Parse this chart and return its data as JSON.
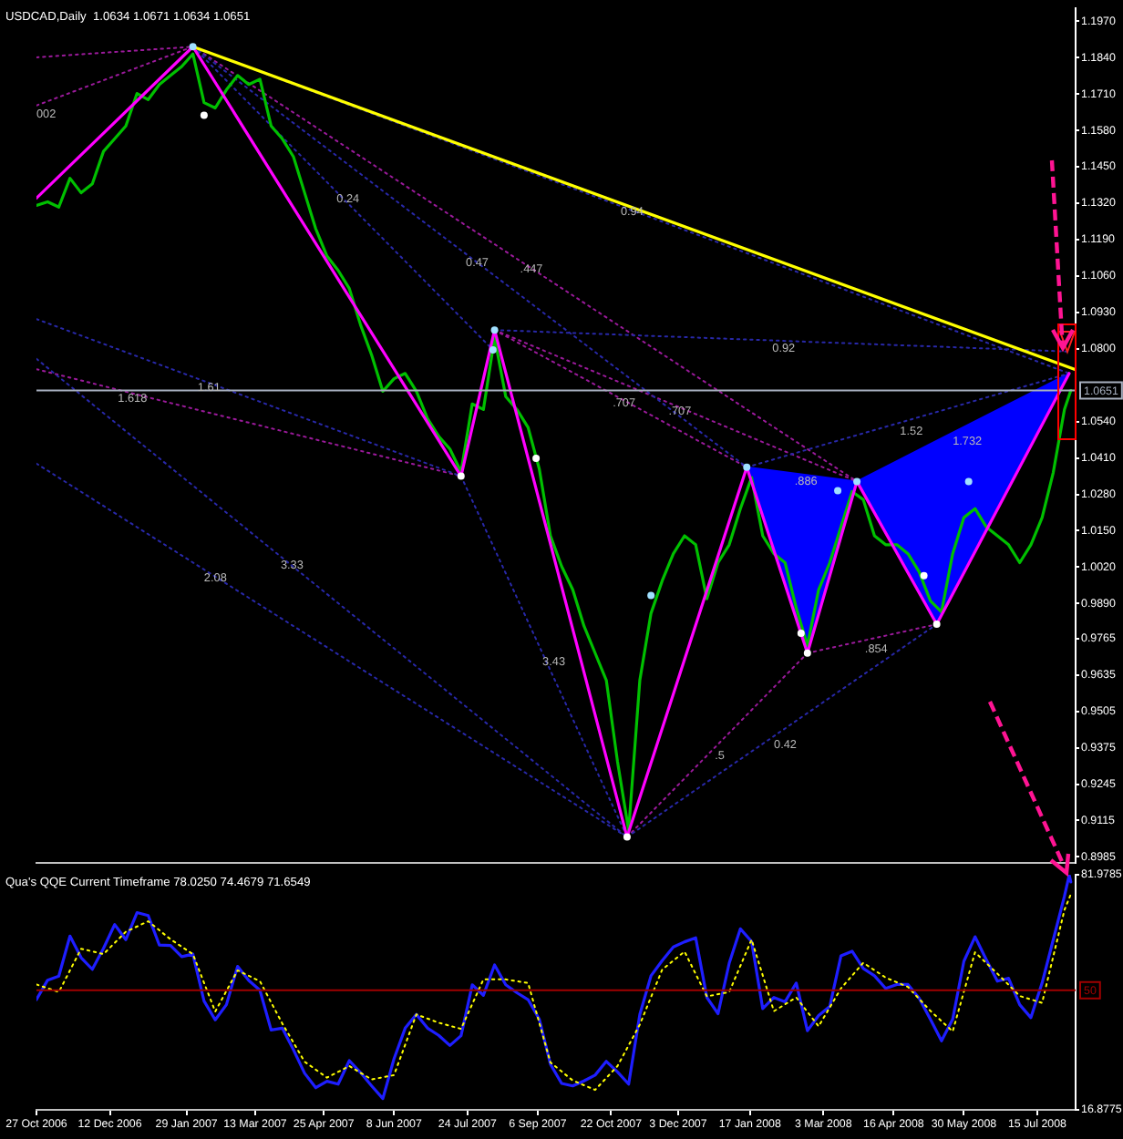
{
  "chart_data": [
    {
      "type": "line",
      "title": "USDCAD,Daily  1.0634 1.0671 1.0634 1.0651",
      "tick_labels": "y",
      "marker": "none",
      "line_style": "solid",
      "xlim": [
        "2006-10-27",
        "2008-08-08"
      ],
      "ylim": [
        0.8965,
        1.2015
      ],
      "yticks": [
        {
          "value": 1.197,
          "label": "1.1970"
        },
        {
          "value": 1.184,
          "label": "1.1840"
        },
        {
          "value": 1.171,
          "label": "1.1710"
        },
        {
          "value": 1.158,
          "label": "1.1580"
        },
        {
          "value": 1.145,
          "label": "1.1450"
        },
        {
          "value": 1.132,
          "label": "1.1320"
        },
        {
          "value": 1.119,
          "label": "1.1190"
        },
        {
          "value": 1.106,
          "label": "1.1060"
        },
        {
          "value": 1.093,
          "label": "1.0930"
        },
        {
          "value": 1.08,
          "label": "1.0800"
        },
        {
          "value": 1.054,
          "label": "1.0540"
        },
        {
          "value": 1.041,
          "label": "1.0410"
        },
        {
          "value": 1.028,
          "label": "1.0280"
        },
        {
          "value": 1.015,
          "label": "1.0150"
        },
        {
          "value": 1.002,
          "label": "1.0020"
        },
        {
          "value": 0.989,
          "label": "0.9890"
        },
        0.9765,
        0.9635,
        0.9505,
        0.9375,
        0.9245,
        0.9115,
        0.8985
      ],
      "x": [
        "2006-10-27",
        "2006-11-03",
        "2006-11-10",
        "2006-11-17",
        "2006-11-24",
        "2006-12-01",
        "2006-12-08",
        "2006-12-15",
        "2006-12-22",
        "2006-12-29",
        "2007-01-05",
        "2007-01-12",
        "2007-01-19",
        "2007-01-26",
        "2007-02-02",
        "2007-02-09",
        "2007-02-16",
        "2007-02-23",
        "2007-03-02",
        "2007-03-09",
        "2007-03-16",
        "2007-03-23",
        "2007-03-30",
        "2007-04-06",
        "2007-04-13",
        "2007-04-20",
        "2007-04-27",
        "2007-05-04",
        "2007-05-11",
        "2007-05-18",
        "2007-05-25",
        "2007-06-01",
        "2007-06-08",
        "2007-06-15",
        "2007-06-22",
        "2007-06-29",
        "2007-07-06",
        "2007-07-13",
        "2007-07-20",
        "2007-07-27",
        "2007-08-03",
        "2007-08-10",
        "2007-08-17",
        "2007-08-24",
        "2007-08-31",
        "2007-09-07",
        "2007-09-14",
        "2007-09-21",
        "2007-09-28",
        "2007-10-05",
        "2007-10-12",
        "2007-10-19",
        "2007-10-26",
        "2007-11-02",
        "2007-11-09",
        "2007-11-16",
        "2007-11-23",
        "2007-11-30",
        "2007-12-07",
        "2007-12-14",
        "2007-12-21",
        "2007-12-28",
        "2008-01-04",
        "2008-01-11",
        "2008-01-18",
        "2008-01-25",
        "2008-02-01",
        "2008-02-08",
        "2008-02-15",
        "2008-02-22",
        "2008-02-29",
        "2008-03-07",
        "2008-03-14",
        "2008-03-21",
        "2008-03-28",
        "2008-04-04",
        "2008-04-11",
        "2008-04-18",
        "2008-04-25",
        "2008-05-02",
        "2008-05-09",
        "2008-05-16",
        "2008-05-23",
        "2008-05-30",
        "2008-06-06",
        "2008-06-13",
        "2008-06-20",
        "2008-06-27",
        "2008-07-04",
        "2008-07-11",
        "2008-07-18",
        "2008-07-25",
        "2008-08-01",
        "2008-08-05"
      ],
      "series": [
        {
          "type": "area",
          "color": "#0000ff",
          "x": [
            "2008-01-15",
            "2008-02-22",
            "2008-03-24",
            "2008-01-15"
          ],
          "values": [
            1.0377,
            0.9713,
            1.0326,
            1.0377
          ]
        },
        {
          "type": "area",
          "color": "#0000ff",
          "x": [
            "2008-03-24",
            "2008-05-13",
            "2008-08-04",
            "2008-03-24"
          ],
          "values": [
            1.0326,
            0.9816,
            1.0712,
            1.0326
          ]
        },
        {
          "type": "line",
          "line_style": "dotted",
          "color": "#9a1a9a",
          "x": [
            "2006-10-27",
            "2007-02-02"
          ],
          "values": [
            1.1841,
            1.1879
          ]
        },
        {
          "type": "line",
          "line_style": "dotted",
          "color": "#9a1a9a",
          "x": [
            "2006-10-27",
            "2007-02-02"
          ],
          "values": [
            1.1669,
            1.1879
          ]
        },
        {
          "type": "line",
          "line_style": "dotted",
          "color": "#9a1a9a",
          "x": [
            "2006-10-27",
            "2007-07-20"
          ],
          "values": [
            1.0727,
            1.0345
          ]
        },
        {
          "type": "line",
          "line_style": "dotted",
          "color": "#9a1a9a",
          "x": [
            "2007-08-10",
            "2008-01-15"
          ],
          "values": [
            1.0867,
            1.0377
          ]
        },
        {
          "type": "line",
          "line_style": "dotted",
          "color": "#9a1a9a",
          "x": [
            "2007-08-10",
            "2008-03-24"
          ],
          "values": [
            1.0867,
            1.0326
          ]
        },
        {
          "type": "line",
          "line_style": "dotted",
          "color": "#9a1a9a",
          "x": [
            "2007-02-02",
            "2008-03-24"
          ],
          "values": [
            1.1879,
            1.0326
          ]
        },
        {
          "type": "line",
          "line_style": "dotted",
          "color": "#9a1a9a",
          "x": [
            "2007-11-01",
            "2008-02-22"
          ],
          "values": [
            0.9056,
            0.9713
          ]
        },
        {
          "type": "line",
          "line_style": "dotted",
          "color": "#9a1a9a",
          "x": [
            "2008-02-22",
            "2008-05-13"
          ],
          "values": [
            0.9713,
            0.9816
          ]
        },
        {
          "type": "line",
          "line_style": "dotted",
          "color": "#2828a8",
          "x": [
            "2006-10-27",
            "2007-07-20"
          ],
          "values": [
            1.0906,
            1.0345
          ]
        },
        {
          "type": "line",
          "line_style": "dotted",
          "color": "#2828a8",
          "x": [
            "2006-10-27",
            "2007-11-01"
          ],
          "values": [
            1.0764,
            0.9056
          ]
        },
        {
          "type": "line",
          "line_style": "dotted",
          "color": "#2828a8",
          "x": [
            "2006-10-27",
            "2007-11-01"
          ],
          "values": [
            1.039,
            0.9056
          ]
        },
        {
          "type": "line",
          "line_style": "dotted",
          "color": "#2828a8",
          "x": [
            "2007-07-20",
            "2007-11-01"
          ],
          "values": [
            1.0345,
            0.9056
          ]
        },
        {
          "type": "line",
          "line_style": "dotted",
          "color": "#2828a8",
          "x": [
            "2007-11-01",
            "2008-05-13"
          ],
          "values": [
            0.9056,
            0.9816
          ]
        },
        {
          "type": "line",
          "line_style": "dotted",
          "color": "#2828a8",
          "x": [
            "2008-01-15",
            "2008-08-04"
          ],
          "values": [
            1.0377,
            1.0712
          ]
        },
        {
          "type": "line",
          "line_style": "dotted",
          "color": "#2828a8",
          "x": [
            "2007-08-10",
            "2008-08-04"
          ],
          "values": [
            1.0867,
            1.079
          ]
        },
        {
          "type": "line",
          "line_style": "dotted",
          "color": "#2828a8",
          "x": [
            "2007-02-02",
            "2007-08-09"
          ],
          "values": [
            1.1879,
            1.0796
          ]
        },
        {
          "type": "line",
          "line_style": "dotted",
          "color": "#2828a8",
          "x": [
            "2007-02-02",
            "2008-01-15"
          ],
          "values": [
            1.1879,
            1.0377
          ]
        },
        {
          "type": "line",
          "line_style": "dotted",
          "color": "#2828a8",
          "x": [
            "2007-02-02",
            "2008-08-04"
          ],
          "values": [
            1.1879,
            1.0712
          ]
        },
        {
          "color": "#00c000",
          "values": [
            1.1312,
            1.1325,
            1.1306,
            1.1409,
            1.1357,
            1.1389,
            1.1505,
            1.155,
            1.1596,
            1.1712,
            1.169,
            1.1744,
            1.1776,
            1.1808,
            1.1853,
            1.1679,
            1.166,
            1.1725,
            1.1776,
            1.1744,
            1.1763,
            1.1596,
            1.155,
            1.1486,
            1.1357,
            1.1228,
            1.1131,
            1.108,
            1.1015,
            1.0886,
            1.0777,
            1.0648,
            1.0693,
            1.0712,
            1.0648,
            1.0551,
            1.0487,
            1.0442,
            1.036,
            1.0603,
            1.0583,
            1.084,
            1.0629,
            1.0583,
            1.0519,
            1.0371,
            1.0132,
            1.0023,
            0.9939,
            0.981,
            0.9713,
            0.9616,
            0.9326,
            0.908,
            0.9616,
            0.9855,
            0.9971,
            1.0068,
            1.0132,
            1.01,
            0.9907,
            1.0036,
            1.01,
            1.0229,
            1.034,
            1.0132,
            1.0068,
            1.0036,
            0.9874,
            0.974,
            0.9939,
            1.0036,
            1.0164,
            1.029,
            1.0261,
            1.0132,
            1.01,
            1.01,
            1.0068,
            1.0003,
            0.99,
            0.986,
            1.0068,
            1.0197,
            1.0229,
            1.0164,
            1.0132,
            1.01,
            1.0036,
            1.01,
            1.0197,
            1.0358,
            1.0583,
            1.0651
          ]
        },
        {
          "type": "line",
          "color": "#ff00ff",
          "x": [
            "2006-10-27",
            "2007-02-02",
            "2007-07-20",
            "2007-08-10",
            "2007-11-01",
            "2008-01-15",
            "2008-02-22",
            "2008-03-24",
            "2008-05-13",
            "2008-08-04"
          ],
          "values": [
            1.1338,
            1.1879,
            1.0345,
            1.0867,
            0.9056,
            1.0377,
            0.9713,
            1.0326,
            0.9816,
            1.0712
          ]
        },
        {
          "type": "line",
          "color": "#ffff00",
          "x": [
            "2007-02-02",
            "2008-08-08"
          ],
          "values": [
            1.1879,
            1.0725
          ]
        },
        {
          "type": "scatter",
          "marker": "circle",
          "color": "#ffffff",
          "x": [
            "2007-02-09",
            "2007-07-20",
            "2007-09-05",
            "2007-11-01",
            "2008-02-18",
            "2008-02-22",
            "2008-05-05",
            "2008-05-13"
          ],
          "values": [
            1.1634,
            1.0345,
            1.0409,
            0.9056,
            0.9784,
            0.9713,
            0.999,
            0.9816
          ]
        },
        {
          "type": "scatter",
          "marker": "circle",
          "color": "#a0e0ff",
          "x": [
            "2007-02-02",
            "2007-08-09",
            "2007-08-10",
            "2007-11-16",
            "2008-01-15",
            "2008-03-12",
            "2008-03-24",
            "2008-06-02"
          ],
          "values": [
            1.1879,
            1.0796,
            1.0867,
            0.9919,
            1.0377,
            1.0293,
            1.0326,
            1.0326
          ]
        }
      ],
      "ref_lines": [
        {
          "axis": "y",
          "value": 1.0651,
          "label": "1.0651",
          "color": "#a8b0c0"
        }
      ],
      "annotations": [
        {
          "text": "002",
          "x": "2006-10-27",
          "y": 1.1669
        },
        {
          "text": "0.24",
          "x": "2007-05-03",
          "y": 1.1364
        },
        {
          "text": "0.94",
          "x": "2007-10-28",
          "y": 1.132
        },
        {
          "text": "0.47",
          "x": "2007-07-23",
          "y": 1.1139
        },
        {
          "text": ".447",
          "x": "2007-08-26",
          "y": 1.1114
        },
        {
          "text": "0.92",
          "x": "2008-01-31",
          "y": 1.083
        },
        {
          "text": "1.61",
          "x": "2007-02-05",
          "y": 1.0693
        },
        {
          "text": "1.618",
          "x": "2006-12-17",
          "y": 1.0654
        },
        {
          "text": ".707",
          "x": "2007-10-23",
          "y": 1.0637
        },
        {
          "text": ".707",
          "x": "2007-11-27",
          "y": 1.0607
        },
        {
          "text": "1.52",
          "x": "2008-04-20",
          "y": 1.0536
        },
        {
          "text": "1.732",
          "x": "2008-05-23",
          "y": 1.05
        },
        {
          "text": ".886",
          "x": "2008-02-14",
          "y": 1.0355
        },
        {
          "text": "3.33",
          "x": "2007-03-29",
          "y": 1.0058
        },
        {
          "text": "2.08",
          "x": "2007-02-09",
          "y": 1.0011
        },
        {
          "text": ".854",
          "x": "2008-03-29",
          "y": 0.9759
        },
        {
          "text": "3.43",
          "x": "2007-09-09",
          "y": 0.9713
        },
        {
          "text": "0.42",
          "x": "2008-02-01",
          "y": 0.9416
        },
        {
          "text": ".5",
          "x": "2007-12-26",
          "y": 0.9376
        }
      ]
    },
    {
      "type": "line",
      "title": "Qua's QQE Current Timeframe 78.0250 74.4679 71.6549",
      "marker": "none",
      "line_style": "solid",
      "xlim": [
        "2006-10-27",
        "2008-08-08"
      ],
      "ylim": [
        16.8775,
        81.9785
      ],
      "yticks": [
        16.8775,
        81.9785
      ],
      "xticks": [
        {
          "value": "2006-10-27",
          "label": "27 Oct 2006"
        },
        {
          "value": "2006-12-12",
          "label": "12 Dec 2006"
        },
        {
          "value": "2007-01-29",
          "label": "29 Jan 2007"
        },
        {
          "value": "2007-03-13",
          "label": "13 Mar 2007"
        },
        {
          "value": "2007-04-25",
          "label": "25 Apr 2007"
        },
        {
          "value": "2007-06-08",
          "label": "8 Jun 2007"
        },
        {
          "value": "2007-07-24",
          "label": "24 Jul 2007"
        },
        {
          "value": "2007-09-06",
          "label": "6 Sep 2007"
        },
        {
          "value": "2007-10-22",
          "label": "22 Oct 2007"
        },
        {
          "value": "2007-12-03",
          "label": "3 Dec 2007"
        },
        {
          "value": "2008-01-17",
          "label": "17 Jan 2008"
        },
        {
          "value": "2008-03-03",
          "label": "3 Mar 2008"
        },
        {
          "value": "2008-04-16",
          "label": "16 Apr 2008"
        },
        {
          "value": "2008-05-30",
          "label": "30 May 2008"
        },
        {
          "value": "2008-07-15",
          "label": "15 Jul 2008"
        }
      ],
      "x": [
        "2006-10-27",
        "2006-11-03",
        "2006-11-10",
        "2006-11-17",
        "2006-11-24",
        "2006-12-01",
        "2006-12-08",
        "2006-12-15",
        "2006-12-22",
        "2006-12-29",
        "2007-01-05",
        "2007-01-12",
        "2007-01-19",
        "2007-01-26",
        "2007-02-02",
        "2007-02-09",
        "2007-02-16",
        "2007-02-23",
        "2007-03-02",
        "2007-03-09",
        "2007-03-16",
        "2007-03-23",
        "2007-03-30",
        "2007-04-06",
        "2007-04-13",
        "2007-04-20",
        "2007-04-27",
        "2007-05-04",
        "2007-05-11",
        "2007-05-18",
        "2007-05-25",
        "2007-06-01",
        "2007-06-08",
        "2007-06-15",
        "2007-06-22",
        "2007-06-29",
        "2007-07-06",
        "2007-07-13",
        "2007-07-20",
        "2007-07-27",
        "2007-08-03",
        "2007-08-10",
        "2007-08-17",
        "2007-08-24",
        "2007-08-31",
        "2007-09-07",
        "2007-09-14",
        "2007-09-21",
        "2007-09-28",
        "2007-10-05",
        "2007-10-12",
        "2007-10-19",
        "2007-10-26",
        "2007-11-02",
        "2007-11-09",
        "2007-11-16",
        "2007-11-23",
        "2007-11-30",
        "2007-12-07",
        "2007-12-14",
        "2007-12-21",
        "2007-12-28",
        "2008-01-04",
        "2008-01-11",
        "2008-01-18",
        "2008-01-25",
        "2008-02-01",
        "2008-02-08",
        "2008-02-15",
        "2008-02-22",
        "2008-02-29",
        "2008-03-07",
        "2008-03-14",
        "2008-03-21",
        "2008-03-28",
        "2008-04-04",
        "2008-04-11",
        "2008-04-18",
        "2008-04-25",
        "2008-05-02",
        "2008-05-09",
        "2008-05-16",
        "2008-05-23",
        "2008-05-30",
        "2008-06-06",
        "2008-06-13",
        "2008-06-20",
        "2008-06-27",
        "2008-07-04",
        "2008-07-11",
        "2008-07-18",
        "2008-07-25",
        "2008-08-01",
        "2008-08-04",
        "2008-08-05"
      ],
      "series": [
        {
          "color": "#1e1eff",
          "values": [
            47.4,
            52.8,
            53.9,
            65,
            59,
            55.8,
            61.6,
            68.2,
            64,
            71.5,
            70.7,
            62.5,
            62.4,
            59.3,
            60,
            47,
            41.8,
            46,
            56.6,
            52.7,
            50,
            39,
            39.5,
            33.5,
            27,
            23,
            24.8,
            24,
            30.5,
            27.2,
            23.5,
            20,
            31,
            39.5,
            43.3,
            39.5,
            37.5,
            34.7,
            37.4,
            51.5,
            48.6,
            57,
            51.5,
            49.3,
            47.4,
            42,
            29.5,
            24.2,
            23.5,
            24.9,
            26.5,
            30.3,
            27.4,
            24,
            43.3,
            54,
            58.2,
            62,
            63.4,
            64.5,
            48,
            43.5,
            57.5,
            67,
            63.5,
            44.9,
            48,
            46.8,
            52,
            38.8,
            43,
            45.5,
            59.5,
            60.8,
            56,
            54,
            50.5,
            51.6,
            51.6,
            47.8,
            42,
            36,
            42,
            58,
            64.8,
            58.5,
            52.5,
            53.3,
            46,
            42.4,
            52,
            64,
            76,
            81.9,
            80
          ]
        },
        {
          "color": "#ffff00",
          "line_style": "dotted",
          "x": [
            "2006-10-27",
            "2006-11-10",
            "2006-11-24",
            "2006-12-08",
            "2006-12-22",
            "2007-01-05",
            "2007-01-19",
            "2007-02-02",
            "2007-02-16",
            "2007-03-02",
            "2007-03-16",
            "2007-03-30",
            "2007-04-13",
            "2007-04-27",
            "2007-05-11",
            "2007-05-25",
            "2007-06-08",
            "2007-06-22",
            "2007-07-06",
            "2007-07-20",
            "2007-08-03",
            "2007-08-17",
            "2007-08-31",
            "2007-09-14",
            "2007-09-28",
            "2007-10-12",
            "2007-10-26",
            "2007-11-09",
            "2007-11-23",
            "2007-12-07",
            "2007-12-21",
            "2008-01-04",
            "2008-01-18",
            "2008-02-01",
            "2008-02-15",
            "2008-02-29",
            "2008-03-14",
            "2008-03-28",
            "2008-04-11",
            "2008-04-25",
            "2008-05-09",
            "2008-05-23",
            "2008-06-06",
            "2008-06-20",
            "2008-07-04",
            "2008-07-18",
            "2008-08-01",
            "2008-08-05"
          ],
          "values": [
            51.6,
            49.5,
            61.5,
            60,
            66.2,
            69.1,
            64.1,
            60,
            44.1,
            55.5,
            52.5,
            40.8,
            30.2,
            25.8,
            29,
            25.3,
            26.5,
            43.3,
            41,
            39.3,
            53,
            53,
            52,
            30,
            25,
            22.4,
            29,
            40.5,
            55.7,
            60.7,
            48.3,
            49.5,
            64,
            44.2,
            48,
            40,
            50.5,
            57.6,
            53.5,
            50.9,
            44.3,
            38.6,
            60.5,
            54.6,
            48.4,
            46.5,
            72.2,
            76.6
          ]
        }
      ],
      "ref_lines": [
        {
          "axis": "y",
          "value": 50,
          "label": "50",
          "color": "#a00000"
        }
      ]
    }
  ]
}
